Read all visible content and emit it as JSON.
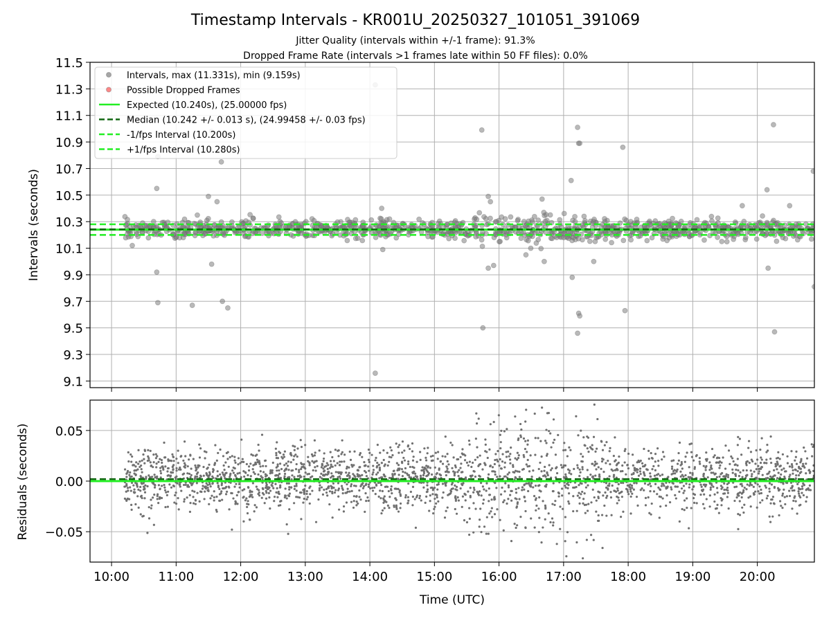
{
  "figure": {
    "title": "Timestamp Intervals - KR001U_20250327_101051_391069",
    "subtitle_1": "Jitter Quality (intervals within +/-1 frame): 91.3%",
    "subtitle_2": "Dropped Frame Rate (intervals >1 frames late within 50 FF files): 0.0%"
  },
  "colors": {
    "points": "#808080",
    "dropped": "#ff5555",
    "expected": "#22ee22",
    "median": "#116611",
    "grid": "#b0b0b0"
  },
  "chart_data": [
    {
      "type": "scatter",
      "ylabel": "Intervals (seconds)",
      "ylim": [
        9.05,
        11.5
      ],
      "xlim": [
        "09:40",
        "20:53"
      ],
      "y_ticks": [
        "11.5",
        "11.3",
        "11.1",
        "10.9",
        "10.7",
        "10.5",
        "10.3",
        "10.1",
        "9.9",
        "9.7",
        "9.5",
        "9.3",
        "9.1"
      ],
      "grid": true,
      "legend_position": "top-left",
      "legend": [
        {
          "label": "Intervals, max (11.331s), min (9.159s)",
          "kind": "marker",
          "color": "#808080"
        },
        {
          "label": "Possible Dropped Frames",
          "kind": "marker",
          "color": "#ff5555"
        },
        {
          "label": "Expected (10.240s), (25.00000 fps)",
          "kind": "solid",
          "color": "#22ee22"
        },
        {
          "label": "Median (10.242 +/- 0.013 s), (24.99458 +/- 0.03 fps)",
          "kind": "dashed",
          "color": "#116611"
        },
        {
          "label": "-1/fps Interval (10.200s)",
          "kind": "dashed",
          "color": "#22ee22"
        },
        {
          "label": "+1/fps Interval (10.280s)",
          "kind": "dashed",
          "color": "#22ee22"
        }
      ],
      "reference_lines": {
        "expected": 10.24,
        "median": 10.242,
        "minus_1fps": 10.2,
        "plus_1fps": 10.28
      },
      "outliers": [
        {
          "x": "10:43",
          "y": 10.79
        },
        {
          "x": "10:42",
          "y": 10.55
        },
        {
          "x": "10:42",
          "y": 9.92
        },
        {
          "x": "10:43",
          "y": 9.69
        },
        {
          "x": "11:15",
          "y": 9.67
        },
        {
          "x": "11:33",
          "y": 10.98
        },
        {
          "x": "11:42",
          "y": 10.75
        },
        {
          "x": "11:43",
          "y": 9.7
        },
        {
          "x": "11:48",
          "y": 9.65
        },
        {
          "x": "11:38",
          "y": 10.45
        },
        {
          "x": "11:30",
          "y": 10.49
        },
        {
          "x": "11:33",
          "y": 9.98
        },
        {
          "x": "14:05",
          "y": 11.33
        },
        {
          "x": "14:05",
          "y": 9.159
        },
        {
          "x": "14:11",
          "y": 10.4
        },
        {
          "x": "14:12",
          "y": 10.09
        },
        {
          "x": "15:44",
          "y": 10.99
        },
        {
          "x": "15:45",
          "y": 9.5
        },
        {
          "x": "15:50",
          "y": 10.49
        },
        {
          "x": "15:52",
          "y": 10.45
        },
        {
          "x": "15:50",
          "y": 9.95
        },
        {
          "x": "15:55",
          "y": 9.97
        },
        {
          "x": "16:25",
          "y": 10.05
        },
        {
          "x": "16:40",
          "y": 10.47
        },
        {
          "x": "16:42",
          "y": 10.0
        },
        {
          "x": "17:07",
          "y": 10.61
        },
        {
          "x": "17:08",
          "y": 9.88
        },
        {
          "x": "17:13",
          "y": 11.01
        },
        {
          "x": "17:14",
          "y": 10.89
        },
        {
          "x": "17:15",
          "y": 10.89
        },
        {
          "x": "17:14",
          "y": 9.61
        },
        {
          "x": "17:15",
          "y": 9.59
        },
        {
          "x": "17:13",
          "y": 9.46
        },
        {
          "x": "17:19",
          "y": 10.34
        },
        {
          "x": "17:28",
          "y": 10.0
        },
        {
          "x": "17:55",
          "y": 10.86
        },
        {
          "x": "17:57",
          "y": 9.63
        },
        {
          "x": "20:09",
          "y": 10.54
        },
        {
          "x": "20:15",
          "y": 11.03
        },
        {
          "x": "20:16",
          "y": 9.47
        },
        {
          "x": "20:10",
          "y": 9.95
        },
        {
          "x": "20:52",
          "y": 10.68
        },
        {
          "x": "20:53",
          "y": 9.81
        },
        {
          "x": "20:30",
          "y": 10.42
        },
        {
          "x": "19:46",
          "y": 10.42
        }
      ]
    },
    {
      "type": "scatter",
      "ylabel": "Residuals (seconds)",
      "xlabel": "Time (UTC)",
      "ylim": [
        -0.08,
        0.08
      ],
      "xlim": [
        "09:40",
        "20:53"
      ],
      "y_ticks": [
        "0.05",
        "0.00",
        "−0.05"
      ],
      "x_ticks": [
        "10:00",
        "11:00",
        "12:00",
        "13:00",
        "14:00",
        "15:00",
        "16:00",
        "17:00",
        "18:00",
        "19:00",
        "20:00"
      ],
      "grid": true,
      "reference_lines": {
        "zero": 0.0,
        "median_offset": 0.002
      }
    }
  ]
}
